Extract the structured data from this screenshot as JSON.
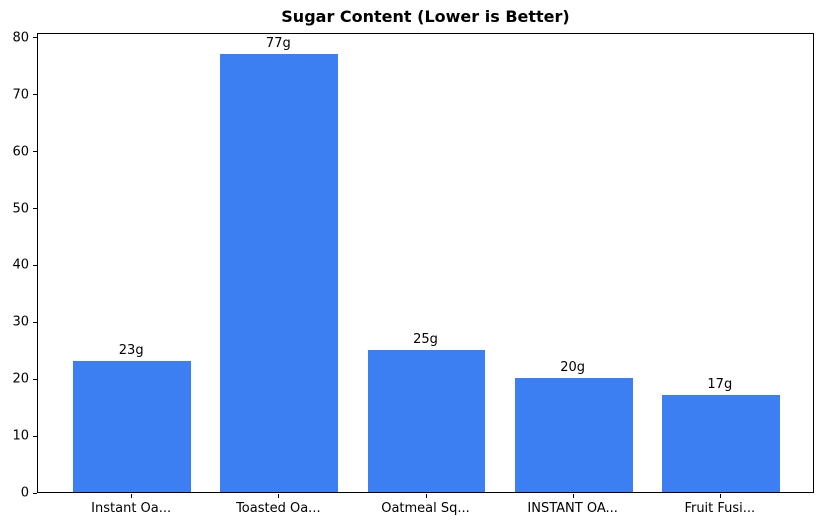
{
  "chart_data": {
    "type": "bar",
    "title": "Sugar Content (Lower is Better)",
    "categories": [
      "Instant Oa...",
      "Toasted Oa...",
      "Oatmeal Sq...",
      "INSTANT OA...",
      "Fruit Fusi..."
    ],
    "values": [
      23,
      77,
      25,
      20,
      17
    ],
    "value_labels": [
      "23g",
      "77g",
      "25g",
      "20g",
      "17g"
    ],
    "xlabel": "",
    "ylabel": "",
    "ylim": [
      0,
      80.85
    ],
    "yticks": [
      0,
      10,
      20,
      30,
      40,
      50,
      60,
      70,
      80
    ],
    "bar_width_ratio": 0.8,
    "x_margin": 0.64,
    "grid": false,
    "legend": null,
    "colors": {
      "bar": "#3b7ff2",
      "axis": "#000000",
      "text": "#000000",
      "background": "#ffffff"
    }
  }
}
